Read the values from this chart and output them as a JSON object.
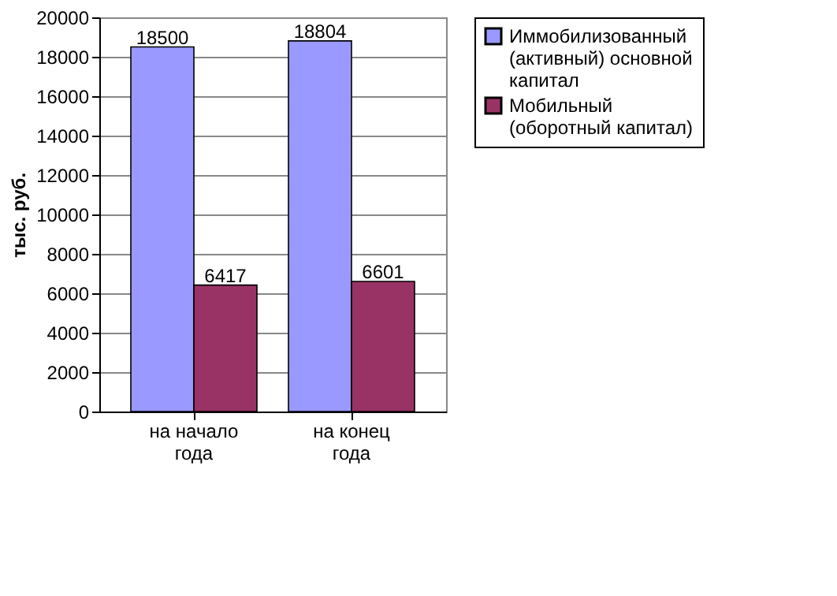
{
  "chart_data": {
    "type": "bar",
    "ylabel": "тыс. руб.",
    "categories": [
      "на начало года",
      "на конец года"
    ],
    "series": [
      {
        "name": "Иммобилизованный (активный) основной капитал",
        "color": "#9999ff",
        "values": [
          18500,
          18804
        ]
      },
      {
        "name": "Мобильный (оборотный капитал)",
        "color": "#993366",
        "values": [
          6417,
          6601
        ]
      }
    ],
    "ylim": [
      0,
      20000
    ],
    "yticks": [
      0,
      2000,
      4000,
      6000,
      8000,
      10000,
      12000,
      14000,
      16000,
      18000,
      20000
    ],
    "grid": "y",
    "legend": "right",
    "data_labels": true
  }
}
